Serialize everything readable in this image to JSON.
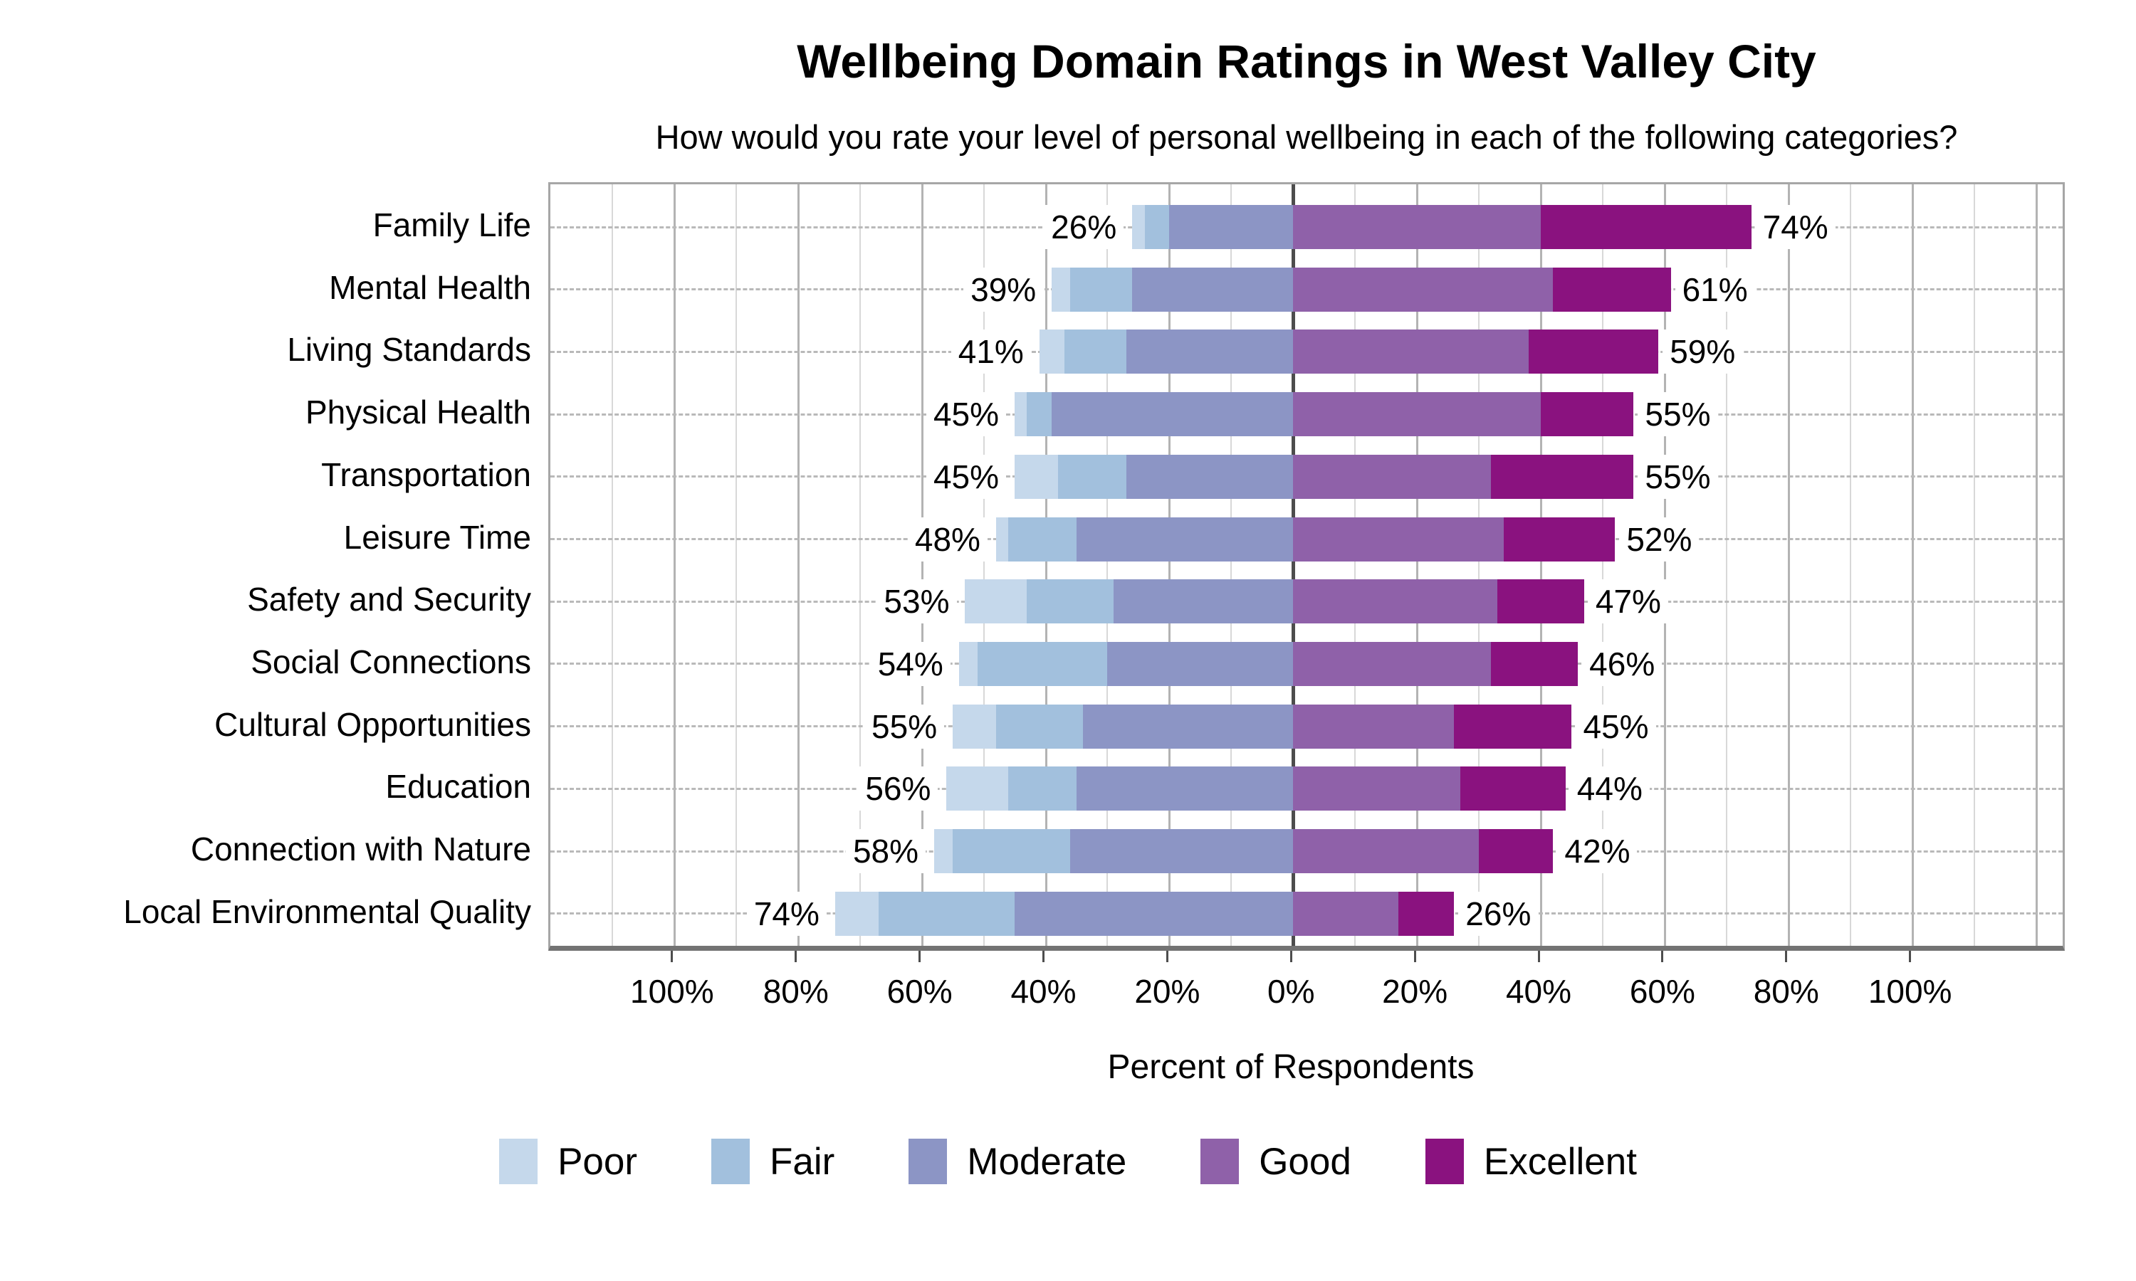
{
  "title": "Wellbeing Domain Ratings in West Valley City",
  "subtitle": "How would you rate your level of personal wellbeing in each of the following categories?",
  "xlabel": "Percent of Respondents",
  "chart_data": {
    "type": "bar",
    "variant": "diverging-stacked-horizontal",
    "title": "Wellbeing Domain Ratings in West Valley City",
    "subtitle": "How would you rate your level of personal wellbeing in each of the following categories?",
    "xlabel": "Percent of Respondents",
    "note": "Poor, Fair and Moderate stack leftward from zero; Good and Excellent stack rightward",
    "categories": [
      "Family Life",
      "Mental Health",
      "Living Standards",
      "Physical Health",
      "Transportation",
      "Leisure Time",
      "Safety and Security",
      "Social Connections",
      "Cultural Opportunities",
      "Education",
      "Connection with Nature",
      "Local Environmental Quality"
    ],
    "series": [
      {
        "name": "Poor",
        "color": "#c5d8eb",
        "values": [
          2,
          3,
          4,
          2,
          7,
          2,
          10,
          3,
          7,
          10,
          3,
          7
        ]
      },
      {
        "name": "Fair",
        "color": "#a2c0dd",
        "values": [
          4,
          10,
          10,
          4,
          11,
          11,
          14,
          21,
          14,
          11,
          19,
          22
        ]
      },
      {
        "name": "Moderate",
        "color": "#8c95c5",
        "values": [
          20,
          26,
          27,
          39,
          27,
          35,
          29,
          30,
          34,
          35,
          36,
          45
        ]
      },
      {
        "name": "Good",
        "color": "#8f61a9",
        "values": [
          40,
          42,
          38,
          40,
          32,
          34,
          33,
          32,
          26,
          27,
          30,
          17
        ]
      },
      {
        "name": "Excellent",
        "color": "#8a127f",
        "values": [
          34,
          19,
          21,
          15,
          23,
          18,
          14,
          14,
          19,
          17,
          12,
          9
        ]
      }
    ],
    "left_total_labels": [
      "26%",
      "39%",
      "41%",
      "45%",
      "45%",
      "48%",
      "53%",
      "54%",
      "55%",
      "56%",
      "58%",
      "74%"
    ],
    "right_total_labels": [
      "74%",
      "61%",
      "59%",
      "55%",
      "55%",
      "52%",
      "47%",
      "46%",
      "45%",
      "44%",
      "42%",
      "26%"
    ],
    "x_axis": {
      "tick_values": [
        -100,
        -80,
        -60,
        -40,
        -20,
        0,
        20,
        40,
        60,
        80,
        100
      ],
      "tick_labels": [
        "100%",
        "80%",
        "60%",
        "40%",
        "20%",
        "0%",
        "20%",
        "40%",
        "60%",
        "80%",
        "100%"
      ],
      "xlim": [
        -120,
        125
      ],
      "gridlines_every": 10,
      "grid": true
    },
    "legend_position": "bottom",
    "legend": [
      "Poor",
      "Fair",
      "Moderate",
      "Good",
      "Excellent"
    ]
  },
  "colors": {
    "poor": "#c5d8eb",
    "fair": "#a2c0dd",
    "moderate": "#8c95c5",
    "good": "#8f61a9",
    "excellent": "#8a127f",
    "zero_line": "#4d4d4d",
    "grid_major": "#b3b3b3",
    "grid_minor": "#d8d8d8",
    "row_guide": "#b9b9b9"
  }
}
